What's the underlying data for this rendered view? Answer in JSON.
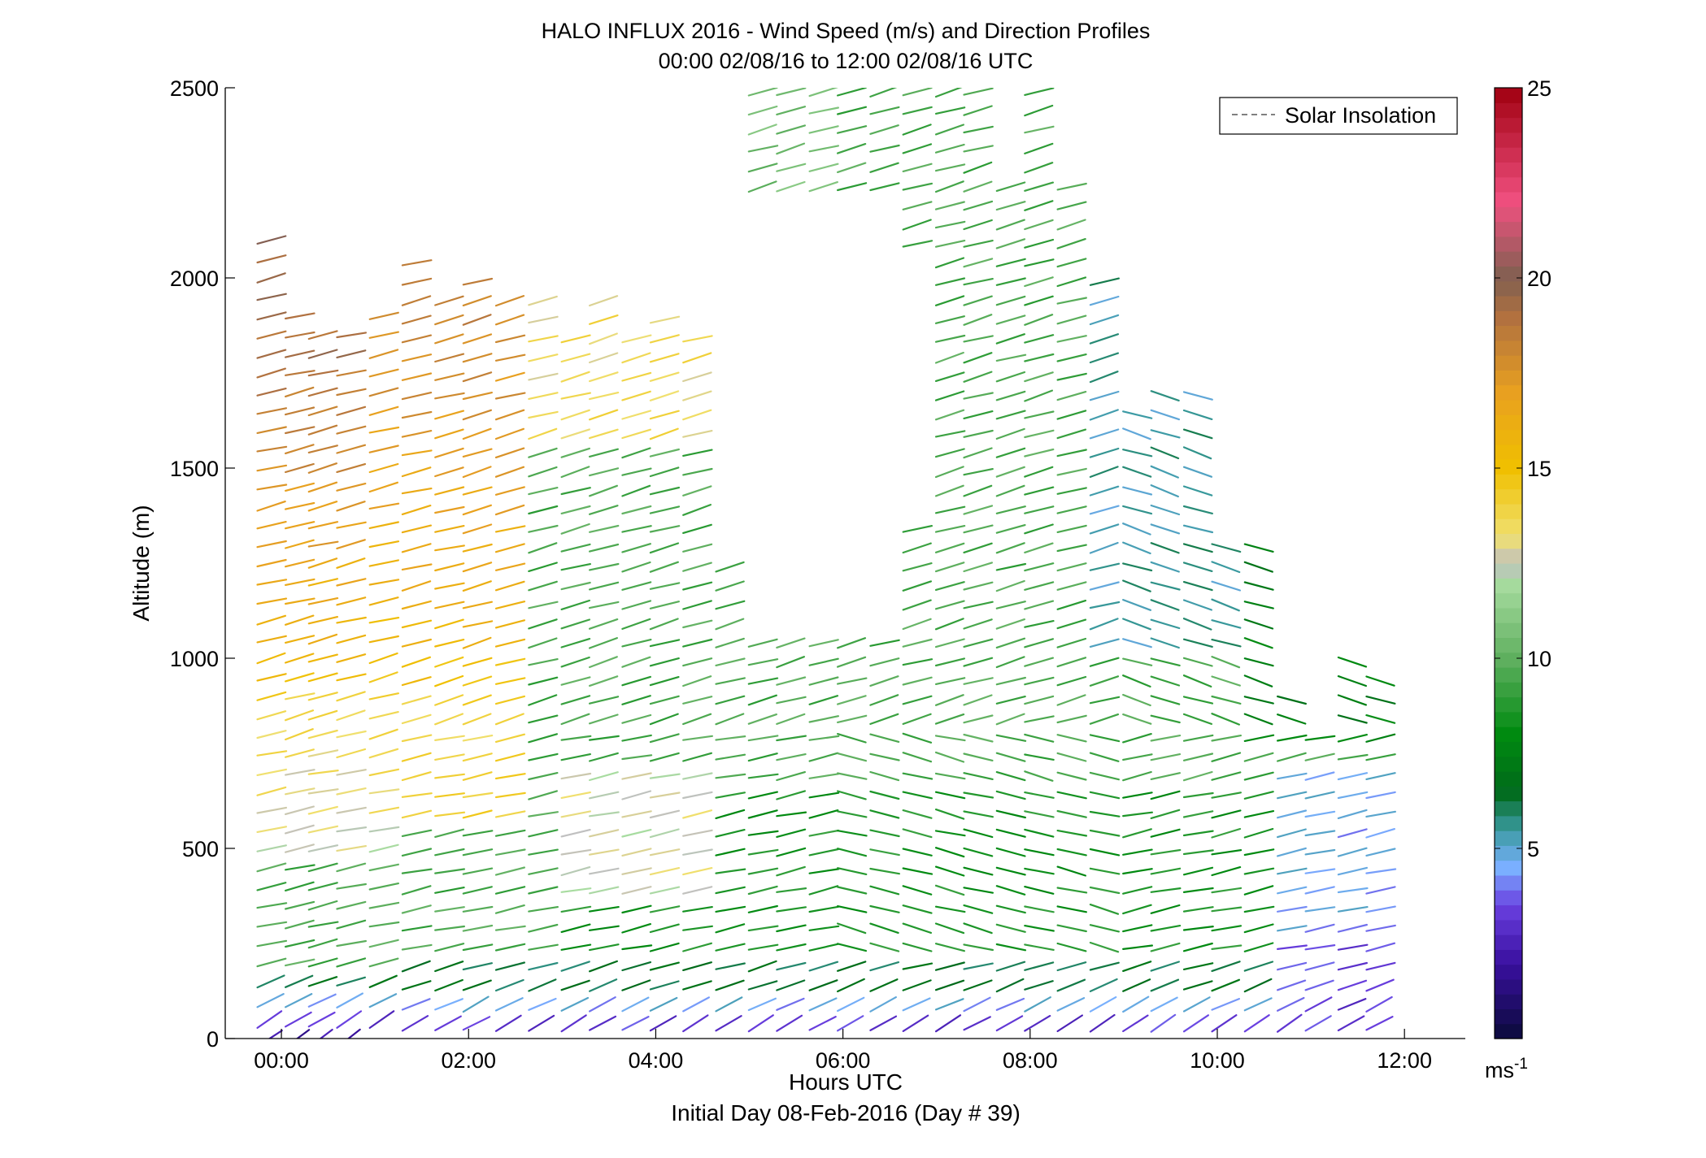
{
  "chart_data": {
    "type": "scatter",
    "title": "HALO INFLUX 2016 - Wind Speed (m/s) and Direction Profiles",
    "subtitle": "00:00 02/08/16 to 12:00 02/08/16  UTC",
    "xlabel": "Hours UTC",
    "xlabel2": "Initial Day 08-Feb-2016 (Day # 39)",
    "ylabel": "Altitude (m)",
    "xlim": [
      -0.6,
      12.65
    ],
    "ylim": [
      0,
      2500
    ],
    "x_ticks": [
      {
        "value": 0,
        "label": "00:00"
      },
      {
        "value": 2,
        "label": "02:00"
      },
      {
        "value": 4,
        "label": "04:00"
      },
      {
        "value": 6,
        "label": "06:00"
      },
      {
        "value": 8,
        "label": "08:00"
      },
      {
        "value": 10,
        "label": "10:00"
      },
      {
        "value": 12,
        "label": "12:00"
      }
    ],
    "y_ticks": [
      {
        "value": 0,
        "label": "0"
      },
      {
        "value": 500,
        "label": "500"
      },
      {
        "value": 1000,
        "label": "1000"
      },
      {
        "value": 1500,
        "label": "1500"
      },
      {
        "value": 2000,
        "label": "2000"
      },
      {
        "value": 2500,
        "label": "2500"
      }
    ],
    "legend": {
      "position": "top-right",
      "entries": [
        {
          "label": "Solar Insolation",
          "style": "dashed",
          "color": "#808080"
        }
      ]
    },
    "colorbar": {
      "min": 0,
      "max": 25,
      "ticks": [
        {
          "value": 5,
          "label": "5"
        },
        {
          "value": 10,
          "label": "10"
        },
        {
          "value": 15,
          "label": "15"
        },
        {
          "value": 20,
          "label": "20"
        },
        {
          "value": 25,
          "label": "25"
        }
      ],
      "unit_label": "ms",
      "unit_exponent": "-1",
      "stops": [
        {
          "v": 0,
          "color": "#0a0a3a"
        },
        {
          "v": 2,
          "color": "#3a10a0"
        },
        {
          "v": 3.5,
          "color": "#6a40e0"
        },
        {
          "v": 4.5,
          "color": "#7ab0ff"
        },
        {
          "v": 5.5,
          "color": "#3a9aa0"
        },
        {
          "v": 6.5,
          "color": "#006a1a"
        },
        {
          "v": 8,
          "color": "#008a10"
        },
        {
          "v": 10,
          "color": "#60b060"
        },
        {
          "v": 12,
          "color": "#a8dca0"
        },
        {
          "v": 12.5,
          "color": "#c0c0c0"
        },
        {
          "v": 13.2,
          "color": "#f0e070"
        },
        {
          "v": 15,
          "color": "#f0c000"
        },
        {
          "v": 17,
          "color": "#e8a020"
        },
        {
          "v": 19,
          "color": "#b07040"
        },
        {
          "v": 20,
          "color": "#806050"
        },
        {
          "v": 22,
          "color": "#f05080"
        },
        {
          "v": 25,
          "color": "#a00010"
        }
      ]
    },
    "series": [
      {
        "x": -0.1,
        "y0": 0,
        "y1": 2100,
        "step": 50
      },
      {
        "x": 0.2,
        "y0": 0,
        "y1": 1900,
        "step": 50
      },
      {
        "x": 0.45,
        "y0": 0,
        "y1": 1860,
        "step": 50
      },
      {
        "x": 0.75,
        "y0": 0,
        "y1": 1880,
        "step": 50
      },
      {
        "x": 1.1,
        "y0": 50,
        "y1": 1930,
        "step": 50
      },
      {
        "x": 1.45,
        "y0": 40,
        "y1": 2050,
        "step": 50
      },
      {
        "x": 1.8,
        "y0": 40,
        "y1": 1950,
        "step": 50
      },
      {
        "x": 2.1,
        "y0": 40,
        "y1": 2020,
        "step": 50
      },
      {
        "x": 2.45,
        "y0": 40,
        "y1": 1970,
        "step": 50
      },
      {
        "x": 2.8,
        "y0": 40,
        "y1": 1950,
        "step": 50
      },
      {
        "x": 3.15,
        "y0": 40,
        "y1": 1880,
        "step": 50
      },
      {
        "x": 3.45,
        "y0": 40,
        "y1": 1980,
        "step": 50
      },
      {
        "x": 3.8,
        "y0": 40,
        "y1": 1880,
        "step": 50
      },
      {
        "x": 4.1,
        "y0": 40,
        "y1": 1900,
        "step": 50
      },
      {
        "x": 4.45,
        "y0": 40,
        "y1": 1870,
        "step": 50
      },
      {
        "x": 4.8,
        "y0": 40,
        "y1": 1280,
        "step": 50
      },
      {
        "x": 5.15,
        "y0": 40,
        "y1": 2490,
        "step": 50
      },
      {
        "x": 5.45,
        "y0": 40,
        "y1": 2490,
        "step": 50
      },
      {
        "x": 5.8,
        "y0": 40,
        "y1": 2490,
        "step": 50
      },
      {
        "x": 6.1,
        "y0": 40,
        "y1": 2490,
        "step": 50
      },
      {
        "x": 6.45,
        "y0": 40,
        "y1": 2490,
        "step": 50
      },
      {
        "x": 6.8,
        "y0": 40,
        "y1": 2490,
        "step": 50
      },
      {
        "x": 7.15,
        "y0": 40,
        "y1": 2490,
        "step": 50
      },
      {
        "x": 7.45,
        "y0": 40,
        "y1": 2490,
        "step": 50
      },
      {
        "x": 7.8,
        "y0": 40,
        "y1": 2250,
        "step": 50
      },
      {
        "x": 8.1,
        "y0": 40,
        "y1": 2490,
        "step": 50
      },
      {
        "x": 8.45,
        "y0": 40,
        "y1": 2280,
        "step": 50
      },
      {
        "x": 8.8,
        "y0": 40,
        "y1": 2030,
        "step": 50
      },
      {
        "x": 9.15,
        "y0": 40,
        "y1": 1680,
        "step": 50
      },
      {
        "x": 9.45,
        "y0": 40,
        "y1": 1720,
        "step": 50
      },
      {
        "x": 9.8,
        "y0": 40,
        "y1": 1720,
        "step": 50
      },
      {
        "x": 10.1,
        "y0": 40,
        "y1": 1290,
        "step": 50
      },
      {
        "x": 10.45,
        "y0": 40,
        "y1": 1290,
        "step": 50
      },
      {
        "x": 10.8,
        "y0": 40,
        "y1": 890,
        "step": 50
      },
      {
        "x": 11.1,
        "y0": 40,
        "y1": 790,
        "step": 50
      },
      {
        "x": 11.45,
        "y0": 40,
        "y1": 990,
        "step": 50
      },
      {
        "x": 11.75,
        "y0": 40,
        "y1": 960,
        "step": 50
      }
    ],
    "gaps": [
      {
        "x0": 4.6,
        "x1": 7.0,
        "y0": 1350,
        "y1": 2050
      },
      {
        "x0": 5.0,
        "x1": 6.5,
        "y0": 1080,
        "y1": 1350
      },
      {
        "x0": 4.5,
        "x1": 5.05,
        "y0": 1900,
        "y1": 2500
      },
      {
        "x0": 5.0,
        "x1": 6.6,
        "y0": 2040,
        "y1": 2200
      }
    ]
  }
}
